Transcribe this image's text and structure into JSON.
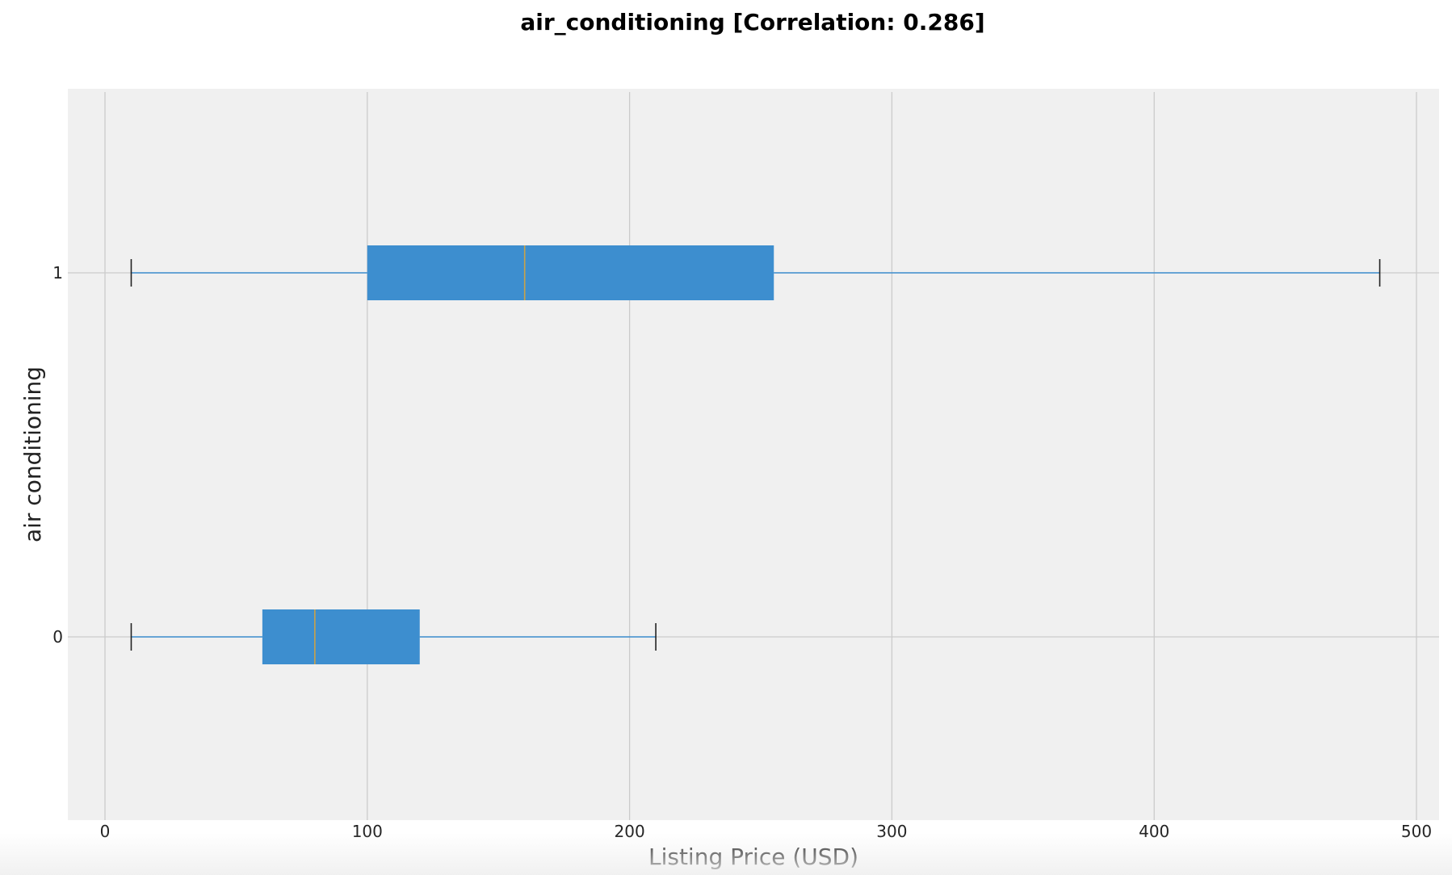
{
  "chart_data": {
    "type": "box",
    "orientation": "horizontal",
    "title": "air_conditioning [Correlation: 0.286]",
    "xlabel": "Listing Price (USD)",
    "ylabel": "air conditioning",
    "xlim": [
      -15,
      505
    ],
    "x_ticks": [
      0,
      100,
      200,
      300,
      400,
      500
    ],
    "x_tick_labels": [
      "0",
      "100",
      "200",
      "300",
      "400",
      "500"
    ],
    "categories": [
      "0",
      "1"
    ],
    "grid": true,
    "colors": {
      "box_fill": "#3d8ecf",
      "whisker": "#3d8ecf",
      "median": "#c9a24a",
      "cap": "#222222",
      "plot_bg": "#f0f0f0",
      "grid": "#cbcbcb"
    },
    "boxes": [
      {
        "category": "1",
        "whisker_low": 10,
        "q1": 100,
        "median": 160,
        "q3": 255,
        "whisker_high": 486
      },
      {
        "category": "0",
        "whisker_low": 10,
        "q1": 60,
        "median": 80,
        "q3": 120,
        "whisker_high": 210
      }
    ]
  }
}
